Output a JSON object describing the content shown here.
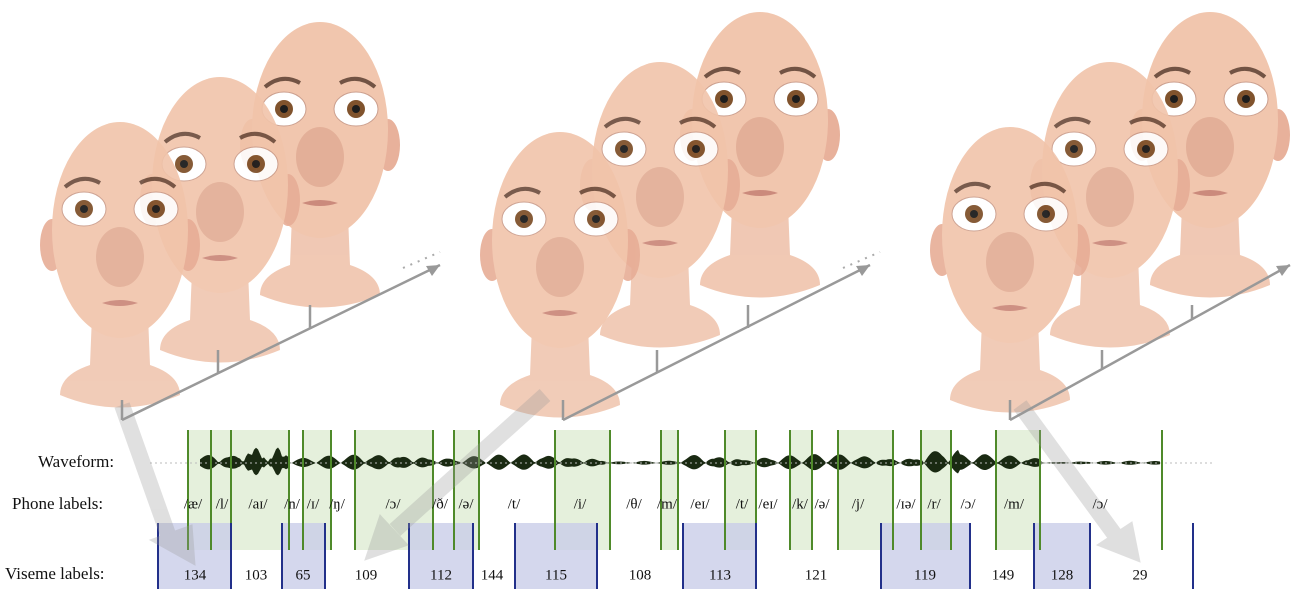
{
  "row_labels": {
    "waveform": "Waveform:",
    "phones": "Phone labels:",
    "visemes": "Viseme labels:"
  },
  "phone_labels": [
    "/æ/",
    "/l/",
    "/aɪ/",
    "/n/",
    "/ɪ/",
    "/ŋ/",
    "/ɔ/",
    "/ð/",
    "/ə/",
    "/t/",
    "/i/",
    "/θ/",
    "/m/",
    "/eɪ/",
    "/t/",
    "/eɪ/",
    "/k/",
    "/ə/",
    "/j/",
    "/ɪə/",
    "/r/",
    "/ɔ/",
    "/m/",
    "/ɔ/"
  ],
  "viseme_labels": [
    134,
    103,
    65,
    109,
    112,
    144,
    115,
    108,
    113,
    121,
    119,
    149,
    128,
    29
  ]
}
